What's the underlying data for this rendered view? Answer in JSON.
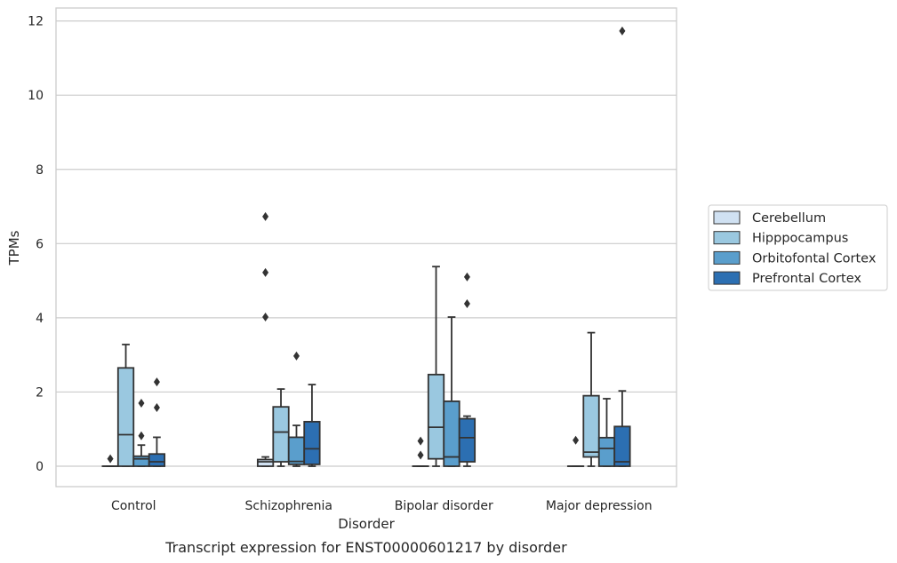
{
  "chart_data": {
    "type": "box",
    "caption": "Transcript expression for ENST00000601217 by disorder",
    "xlabel": "Disorder",
    "ylabel": "TPMs",
    "ylim": [
      -0.55,
      12.35
    ],
    "yticks": [
      0,
      2,
      4,
      6,
      8,
      10,
      12
    ],
    "grid": true,
    "legend_position": "right",
    "categories": [
      "Control",
      "Schizophrenia",
      "Bipolar disorder",
      "Major depression"
    ],
    "series": [
      {
        "name": "Cerebellum",
        "color": "#d0e1f2",
        "boxes": [
          {
            "whislo": 0,
            "q1": 0,
            "med": 0,
            "q3": 0,
            "whishi": 0,
            "fliers": [
              0.2
            ]
          },
          {
            "whislo": 0,
            "q1": 0,
            "med": 0.12,
            "q3": 0.18,
            "whishi": 0.25,
            "fliers": [
              4.02,
              5.22,
              6.73
            ]
          },
          {
            "whislo": 0,
            "q1": 0,
            "med": 0,
            "q3": 0,
            "whishi": 0,
            "fliers": [
              0.3,
              0.68
            ]
          },
          {
            "whislo": 0,
            "q1": 0,
            "med": 0,
            "q3": 0,
            "whishi": 0,
            "fliers": [
              0.7
            ]
          }
        ]
      },
      {
        "name": "Hipppocampus",
        "color": "#9ac8e0",
        "boxes": [
          {
            "whislo": 0,
            "q1": 0,
            "med": 0.85,
            "q3": 2.65,
            "whishi": 3.28,
            "fliers": []
          },
          {
            "whislo": 0,
            "q1": 0.12,
            "med": 0.92,
            "q3": 1.6,
            "whishi": 2.08,
            "fliers": []
          },
          {
            "whislo": 0,
            "q1": 0.2,
            "med": 1.05,
            "q3": 2.47,
            "whishi": 5.38,
            "fliers": []
          },
          {
            "whislo": 0,
            "q1": 0.25,
            "med": 0.38,
            "q3": 1.9,
            "whishi": 3.6,
            "fliers": []
          }
        ]
      },
      {
        "name": "Orbitofontal Cortex",
        "color": "#5a9ecc",
        "boxes": [
          {
            "whislo": 0,
            "q1": 0,
            "med": 0.2,
            "q3": 0.27,
            "whishi": 0.57,
            "fliers": [
              0.82,
              1.7
            ]
          },
          {
            "whislo": 0,
            "q1": 0.05,
            "med": 0.13,
            "q3": 0.78,
            "whishi": 1.1,
            "fliers": [
              2.97
            ]
          },
          {
            "whislo": 0,
            "q1": 0,
            "med": 0.25,
            "q3": 1.75,
            "whishi": 4.02,
            "fliers": []
          },
          {
            "whislo": 0,
            "q1": 0,
            "med": 0.48,
            "q3": 0.77,
            "whishi": 1.82,
            "fliers": []
          }
        ]
      },
      {
        "name": "Prefrontal Cortex",
        "color": "#2c6fb2",
        "boxes": [
          {
            "whislo": 0,
            "q1": 0,
            "med": 0.12,
            "q3": 0.33,
            "whishi": 0.78,
            "fliers": [
              1.58,
              2.27
            ]
          },
          {
            "whislo": 0,
            "q1": 0.05,
            "med": 0.47,
            "q3": 1.2,
            "whishi": 2.2,
            "fliers": []
          },
          {
            "whislo": 0,
            "q1": 0.12,
            "med": 0.77,
            "q3": 1.28,
            "whishi": 1.35,
            "fliers": [
              4.38,
              5.1
            ]
          },
          {
            "whislo": 0,
            "q1": 0,
            "med": 0.12,
            "q3": 1.07,
            "whishi": 2.03,
            "fliers": [
              11.73
            ]
          }
        ]
      }
    ]
  }
}
